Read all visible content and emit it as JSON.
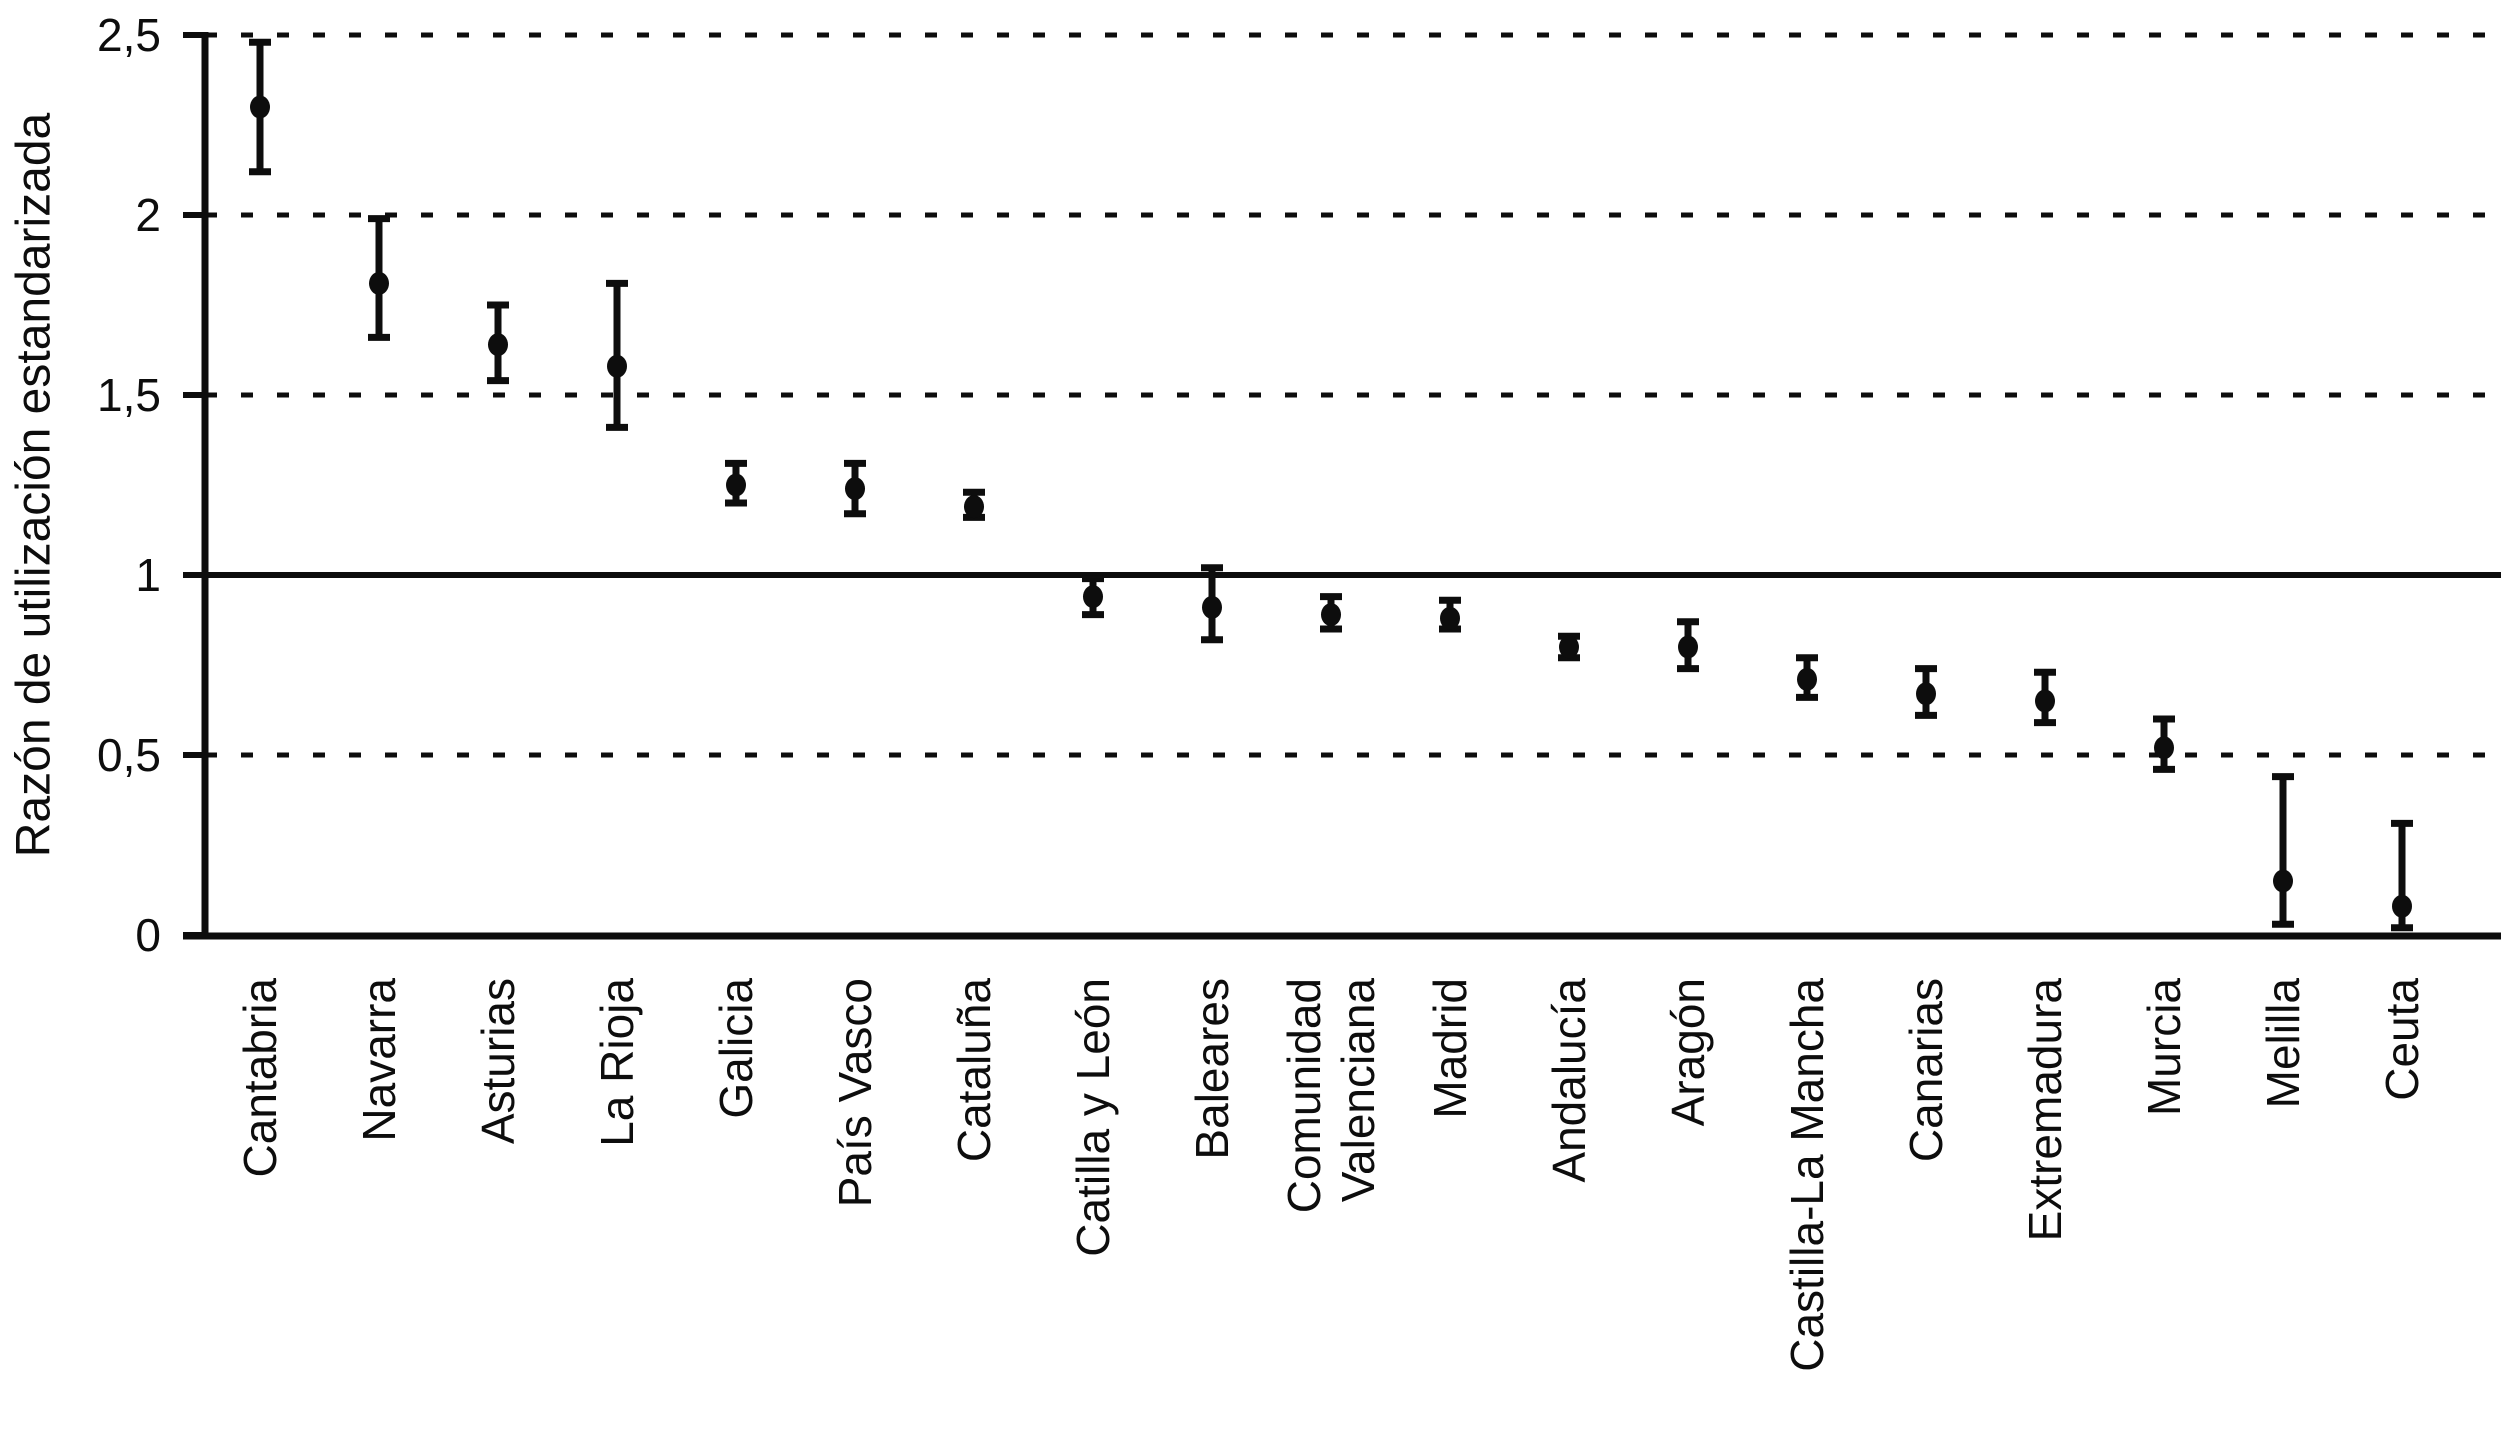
{
  "chart_data": {
    "type": "scatter",
    "subtype": "point-with-error-bars",
    "title": "",
    "xlabel": "",
    "ylabel": "Razón de utilización estandarizada",
    "ylim": [
      0,
      2.5
    ],
    "yticks": [
      0,
      0.5,
      1,
      1.5,
      2,
      2.5
    ],
    "ytick_labels": [
      "0",
      "0,5",
      "1",
      "1,5",
      "2",
      "2,5"
    ],
    "grid": "horizontal dotted at 0.5, 1.5, 2, 2.5",
    "reference_line_y": 1,
    "legend_position": "none",
    "categories": [
      "Cantabria",
      "Navarra",
      "Asturias",
      "La Rioja",
      "Galicia",
      "País Vasco",
      "Cataluña",
      "Catilla y León",
      "Baleares",
      "Comunidad\nValenciana",
      "Madrid",
      "Andalucía",
      "Aragón",
      "Castilla-La Mancha",
      "Canarias",
      "Extremadura",
      "Murcia",
      "Melilla",
      "Ceuta"
    ],
    "series": [
      {
        "name": "Razón de utilización estandarizada",
        "values": [
          2.3,
          1.81,
          1.64,
          1.58,
          1.25,
          1.24,
          1.19,
          0.94,
          0.91,
          0.89,
          0.88,
          0.8,
          0.8,
          0.71,
          0.67,
          0.65,
          0.52,
          0.15,
          0.08
        ],
        "ci_low": [
          2.12,
          1.66,
          1.54,
          1.41,
          1.2,
          1.17,
          1.16,
          0.89,
          0.82,
          0.85,
          0.85,
          0.77,
          0.74,
          0.66,
          0.61,
          0.59,
          0.46,
          0.03,
          0.02
        ],
        "ci_high": [
          2.48,
          1.99,
          1.75,
          1.81,
          1.31,
          1.31,
          1.23,
          0.99,
          1.02,
          0.94,
          0.93,
          0.83,
          0.87,
          0.77,
          0.74,
          0.73,
          0.6,
          0.44,
          0.31
        ]
      }
    ]
  },
  "colors": {
    "foreground": "#0d0d0d",
    "background": "#ffffff"
  }
}
